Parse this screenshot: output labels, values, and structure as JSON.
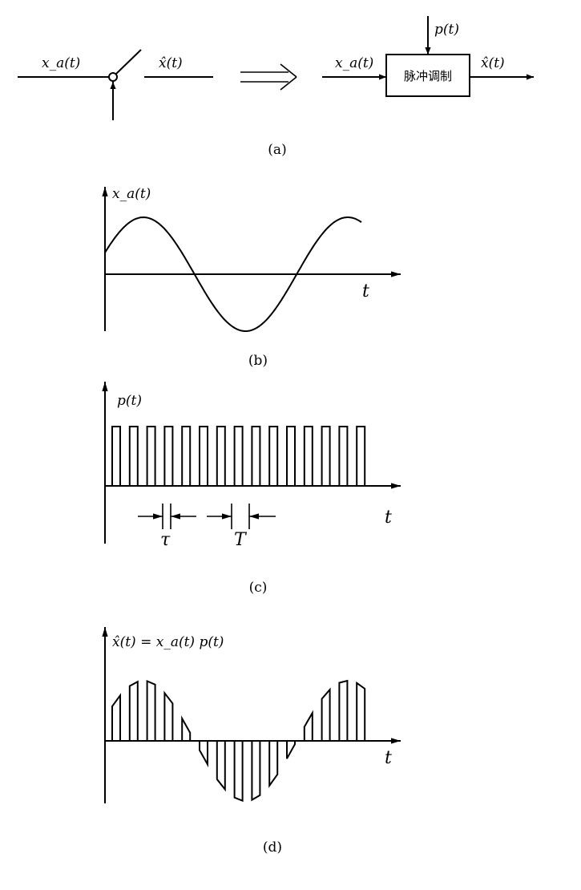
{
  "panel_a": {
    "input_label": "x_a(t)",
    "output_label": "x̂(t)",
    "block_in_label": "x_a(t)",
    "block_out_label": "x̂(t)",
    "pulse_label": "p(t)",
    "block_text": "脉冲调制",
    "caption": "(a)"
  },
  "panel_b": {
    "y_label": "x_a(t)",
    "x_label": "t",
    "caption": "(b)"
  },
  "panel_c": {
    "y_label": "p(t)",
    "x_label": "t",
    "tau_label": "τ",
    "period_label": "T",
    "caption": "(c)"
  },
  "panel_d": {
    "y_label": "x̂(t) = x_a(t) p(t)",
    "x_label": "t",
    "caption": "(d)"
  }
}
